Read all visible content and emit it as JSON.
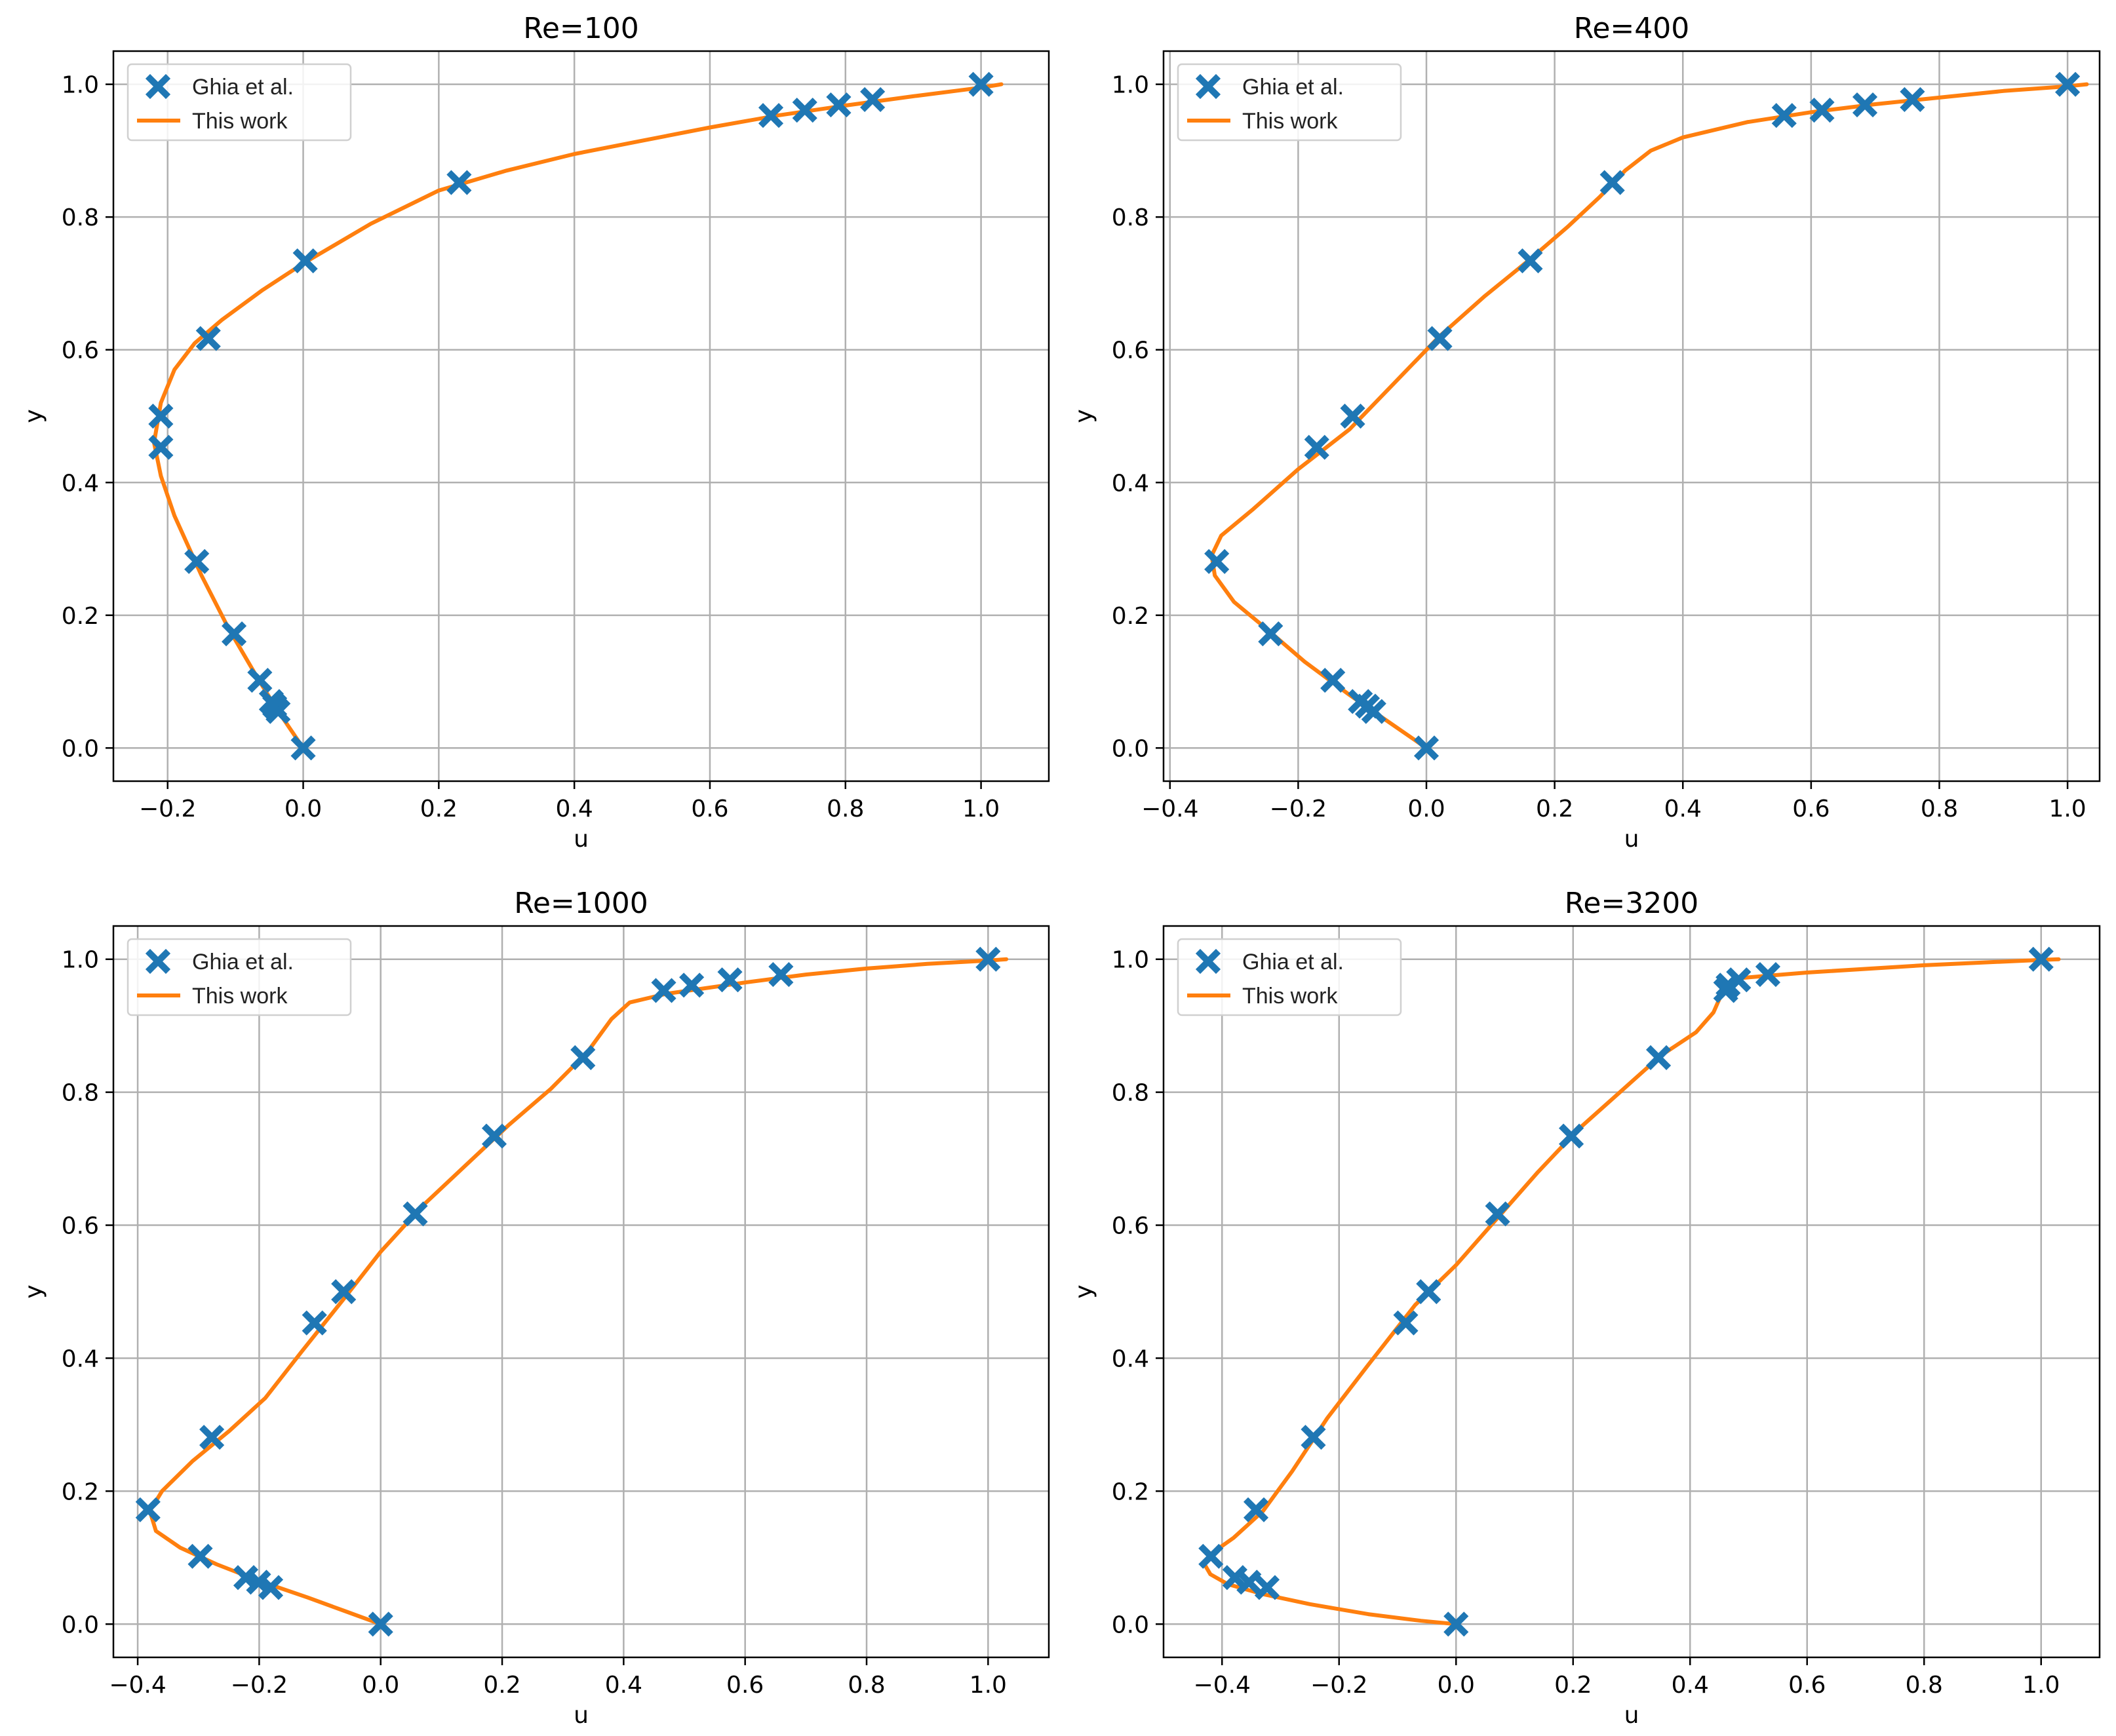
{
  "chart_data": [
    {
      "type": "line",
      "title": "Re=100",
      "xlabel": "u",
      "ylabel": "y",
      "xlim": [
        -0.28,
        1.1
      ],
      "ylim": [
        -0.05,
        1.05
      ],
      "xticks": [
        -0.2,
        0.0,
        0.2,
        0.4,
        0.6,
        0.8,
        1.0
      ],
      "xtick_labels": [
        "−0.2",
        "0.0",
        "0.2",
        "0.4",
        "0.6",
        "0.8",
        "1.0"
      ],
      "yticks": [
        0.0,
        0.2,
        0.4,
        0.6,
        0.8,
        1.0
      ],
      "ytick_labels": [
        "0.0",
        "0.2",
        "0.4",
        "0.6",
        "0.8",
        "1.0"
      ],
      "grid": true,
      "legend_position": "top-left",
      "series": [
        {
          "name": "Ghia et al.",
          "kind": "scatter",
          "marker": "X",
          "color": "#1f77b4",
          "points": [
            [
              1.0,
              1.0
            ],
            [
              0.84,
              0.977
            ],
            [
              0.79,
              0.969
            ],
            [
              0.74,
              0.961
            ],
            [
              0.69,
              0.953
            ],
            [
              0.23,
              0.852
            ],
            [
              0.003,
              0.734
            ],
            [
              -0.14,
              0.617
            ],
            [
              -0.21,
              0.5
            ],
            [
              -0.21,
              0.453
            ],
            [
              -0.157,
              0.281
            ],
            [
              -0.102,
              0.172
            ],
            [
              -0.064,
              0.102
            ],
            [
              -0.047,
              0.07
            ],
            [
              -0.042,
              0.063
            ],
            [
              -0.037,
              0.055
            ],
            [
              0.0,
              0.0
            ]
          ]
        },
        {
          "name": "This work",
          "kind": "line",
          "color": "#ff7f0e",
          "points": [
            [
              0.0,
              0.0
            ],
            [
              -0.04,
              0.06
            ],
            [
              -0.07,
              0.11
            ],
            [
              -0.11,
              0.18
            ],
            [
              -0.15,
              0.26
            ],
            [
              -0.19,
              0.35
            ],
            [
              -0.21,
              0.41
            ],
            [
              -0.22,
              0.46
            ],
            [
              -0.21,
              0.52
            ],
            [
              -0.19,
              0.57
            ],
            [
              -0.16,
              0.61
            ],
            [
              -0.12,
              0.645
            ],
            [
              -0.06,
              0.69
            ],
            [
              0.0,
              0.73
            ],
            [
              0.1,
              0.79
            ],
            [
              0.2,
              0.84
            ],
            [
              0.3,
              0.87
            ],
            [
              0.4,
              0.895
            ],
            [
              0.5,
              0.915
            ],
            [
              0.6,
              0.935
            ],
            [
              0.7,
              0.953
            ],
            [
              0.8,
              0.968
            ],
            [
              0.9,
              0.982
            ],
            [
              1.0,
              0.995
            ],
            [
              1.03,
              1.0
            ]
          ]
        }
      ]
    },
    {
      "type": "line",
      "title": "Re=400",
      "xlabel": "u",
      "ylabel": "y",
      "xlim": [
        -0.41,
        1.05
      ],
      "ylim": [
        -0.05,
        1.05
      ],
      "xticks": [
        -0.4,
        -0.2,
        0.0,
        0.2,
        0.4,
        0.6,
        0.8,
        1.0
      ],
      "xtick_labels": [
        "−0.4",
        "−0.2",
        "0.0",
        "0.2",
        "0.4",
        "0.6",
        "0.8",
        "1.0"
      ],
      "yticks": [
        0.0,
        0.2,
        0.4,
        0.6,
        0.8,
        1.0
      ],
      "ytick_labels": [
        "0.0",
        "0.2",
        "0.4",
        "0.6",
        "0.8",
        "1.0"
      ],
      "grid": true,
      "legend_position": "top-left",
      "series": [
        {
          "name": "Ghia et al.",
          "kind": "scatter",
          "marker": "X",
          "color": "#1f77b4",
          "points": [
            [
              1.0,
              1.0
            ],
            [
              0.758,
              0.977
            ],
            [
              0.684,
              0.969
            ],
            [
              0.617,
              0.961
            ],
            [
              0.558,
              0.953
            ],
            [
              0.29,
              0.852
            ],
            [
              0.162,
              0.734
            ],
            [
              0.021,
              0.617
            ],
            [
              -0.115,
              0.5
            ],
            [
              -0.171,
              0.453
            ],
            [
              -0.327,
              0.281
            ],
            [
              -0.243,
              0.172
            ],
            [
              -0.146,
              0.102
            ],
            [
              -0.103,
              0.07
            ],
            [
              -0.092,
              0.063
            ],
            [
              -0.082,
              0.055
            ],
            [
              0.0,
              0.0
            ]
          ]
        },
        {
          "name": "This work",
          "kind": "line",
          "color": "#ff7f0e",
          "points": [
            [
              0.0,
              0.0
            ],
            [
              -0.06,
              0.04
            ],
            [
              -0.12,
              0.08
            ],
            [
              -0.19,
              0.13
            ],
            [
              -0.25,
              0.18
            ],
            [
              -0.3,
              0.22
            ],
            [
              -0.33,
              0.26
            ],
            [
              -0.335,
              0.29
            ],
            [
              -0.32,
              0.32
            ],
            [
              -0.27,
              0.36
            ],
            [
              -0.2,
              0.42
            ],
            [
              -0.12,
              0.48
            ],
            [
              -0.05,
              0.55
            ],
            [
              0.02,
              0.62
            ],
            [
              0.09,
              0.68
            ],
            [
              0.16,
              0.735
            ],
            [
              0.22,
              0.785
            ],
            [
              0.27,
              0.83
            ],
            [
              0.31,
              0.87
            ],
            [
              0.35,
              0.9
            ],
            [
              0.4,
              0.92
            ],
            [
              0.5,
              0.943
            ],
            [
              0.6,
              0.958
            ],
            [
              0.7,
              0.97
            ],
            [
              0.8,
              0.98
            ],
            [
              0.9,
              0.99
            ],
            [
              1.0,
              0.997
            ],
            [
              1.03,
              1.0
            ]
          ]
        }
      ]
    },
    {
      "type": "line",
      "title": "Re=1000",
      "xlabel": "u",
      "ylabel": "y",
      "xlim": [
        -0.44,
        1.1
      ],
      "ylim": [
        -0.05,
        1.05
      ],
      "xticks": [
        -0.4,
        -0.2,
        0.0,
        0.2,
        0.4,
        0.6,
        0.8,
        1.0
      ],
      "xtick_labels": [
        "−0.4",
        "−0.2",
        "0.0",
        "0.2",
        "0.4",
        "0.6",
        "0.8",
        "1.0"
      ],
      "yticks": [
        0.0,
        0.2,
        0.4,
        0.6,
        0.8,
        1.0
      ],
      "ytick_labels": [
        "0.0",
        "0.2",
        "0.4",
        "0.6",
        "0.8",
        "1.0"
      ],
      "grid": true,
      "legend_position": "top-left",
      "series": [
        {
          "name": "Ghia et al.",
          "kind": "scatter",
          "marker": "X",
          "color": "#1f77b4",
          "points": [
            [
              1.0,
              1.0
            ],
            [
              0.659,
              0.977
            ],
            [
              0.575,
              0.969
            ],
            [
              0.512,
              0.961
            ],
            [
              0.466,
              0.953
            ],
            [
              0.333,
              0.852
            ],
            [
              0.187,
              0.734
            ],
            [
              0.057,
              0.617
            ],
            [
              -0.061,
              0.5
            ],
            [
              -0.109,
              0.453
            ],
            [
              -0.278,
              0.281
            ],
            [
              -0.383,
              0.172
            ],
            [
              -0.297,
              0.102
            ],
            [
              -0.222,
              0.07
            ],
            [
              -0.201,
              0.063
            ],
            [
              -0.181,
              0.055
            ],
            [
              0.0,
              0.0
            ]
          ]
        },
        {
          "name": "This work",
          "kind": "line",
          "color": "#ff7f0e",
          "points": [
            [
              0.0,
              0.0
            ],
            [
              -0.06,
              0.02
            ],
            [
              -0.12,
              0.04
            ],
            [
              -0.2,
              0.065
            ],
            [
              -0.27,
              0.09
            ],
            [
              -0.33,
              0.115
            ],
            [
              -0.37,
              0.14
            ],
            [
              -0.38,
              0.17
            ],
            [
              -0.36,
              0.2
            ],
            [
              -0.31,
              0.245
            ],
            [
              -0.25,
              0.29
            ],
            [
              -0.19,
              0.34
            ],
            [
              -0.13,
              0.41
            ],
            [
              -0.06,
              0.49
            ],
            [
              0.0,
              0.56
            ],
            [
              0.07,
              0.63
            ],
            [
              0.14,
              0.69
            ],
            [
              0.21,
              0.75
            ],
            [
              0.28,
              0.805
            ],
            [
              0.34,
              0.86
            ],
            [
              0.38,
              0.91
            ],
            [
              0.41,
              0.935
            ],
            [
              0.47,
              0.948
            ],
            [
              0.6,
              0.965
            ],
            [
              0.7,
              0.977
            ],
            [
              0.8,
              0.986
            ],
            [
              0.9,
              0.993
            ],
            [
              1.0,
              0.998
            ],
            [
              1.03,
              1.0
            ]
          ]
        }
      ]
    },
    {
      "type": "line",
      "title": "Re=3200",
      "xlabel": "u",
      "ylabel": "y",
      "xlim": [
        -0.5,
        1.1
      ],
      "ylim": [
        -0.05,
        1.05
      ],
      "xticks": [
        -0.4,
        -0.2,
        0.0,
        0.2,
        0.4,
        0.6,
        0.8,
        1.0
      ],
      "xtick_labels": [
        "−0.4",
        "−0.2",
        "0.0",
        "0.2",
        "0.4",
        "0.6",
        "0.8",
        "1.0"
      ],
      "yticks": [
        0.0,
        0.2,
        0.4,
        0.6,
        0.8,
        1.0
      ],
      "ytick_labels": [
        "0.0",
        "0.2",
        "0.4",
        "0.6",
        "0.8",
        "1.0"
      ],
      "grid": true,
      "legend_position": "top-left",
      "series": [
        {
          "name": "Ghia et al.",
          "kind": "scatter",
          "marker": "X",
          "color": "#1f77b4",
          "points": [
            [
              1.0,
              1.0
            ],
            [
              0.533,
              0.977
            ],
            [
              0.483,
              0.969
            ],
            [
              0.465,
              0.961
            ],
            [
              0.461,
              0.953
            ],
            [
              0.346,
              0.852
            ],
            [
              0.197,
              0.734
            ],
            [
              0.071,
              0.617
            ],
            [
              -0.047,
              0.5
            ],
            [
              -0.086,
              0.453
            ],
            [
              -0.244,
              0.281
            ],
            [
              -0.342,
              0.172
            ],
            [
              -0.419,
              0.102
            ],
            [
              -0.378,
              0.07
            ],
            [
              -0.354,
              0.063
            ],
            [
              -0.323,
              0.055
            ],
            [
              0.0,
              0.0
            ]
          ]
        },
        {
          "name": "This work",
          "kind": "line",
          "color": "#ff7f0e",
          "points": [
            [
              0.0,
              0.0
            ],
            [
              -0.06,
              0.005
            ],
            [
              -0.15,
              0.015
            ],
            [
              -0.25,
              0.03
            ],
            [
              -0.33,
              0.045
            ],
            [
              -0.39,
              0.06
            ],
            [
              -0.42,
              0.075
            ],
            [
              -0.43,
              0.09
            ],
            [
              -0.42,
              0.105
            ],
            [
              -0.38,
              0.13
            ],
            [
              -0.33,
              0.17
            ],
            [
              -0.28,
              0.23
            ],
            [
              -0.22,
              0.31
            ],
            [
              -0.15,
              0.39
            ],
            [
              -0.07,
              0.48
            ],
            [
              0.0,
              0.54
            ],
            [
              0.07,
              0.61
            ],
            [
              0.14,
              0.68
            ],
            [
              0.21,
              0.745
            ],
            [
              0.28,
              0.8
            ],
            [
              0.35,
              0.855
            ],
            [
              0.41,
              0.89
            ],
            [
              0.44,
              0.92
            ],
            [
              0.455,
              0.95
            ],
            [
              0.49,
              0.972
            ],
            [
              0.6,
              0.98
            ],
            [
              0.8,
              0.991
            ],
            [
              1.0,
              0.999
            ],
            [
              1.03,
              1.0
            ]
          ]
        }
      ]
    }
  ]
}
